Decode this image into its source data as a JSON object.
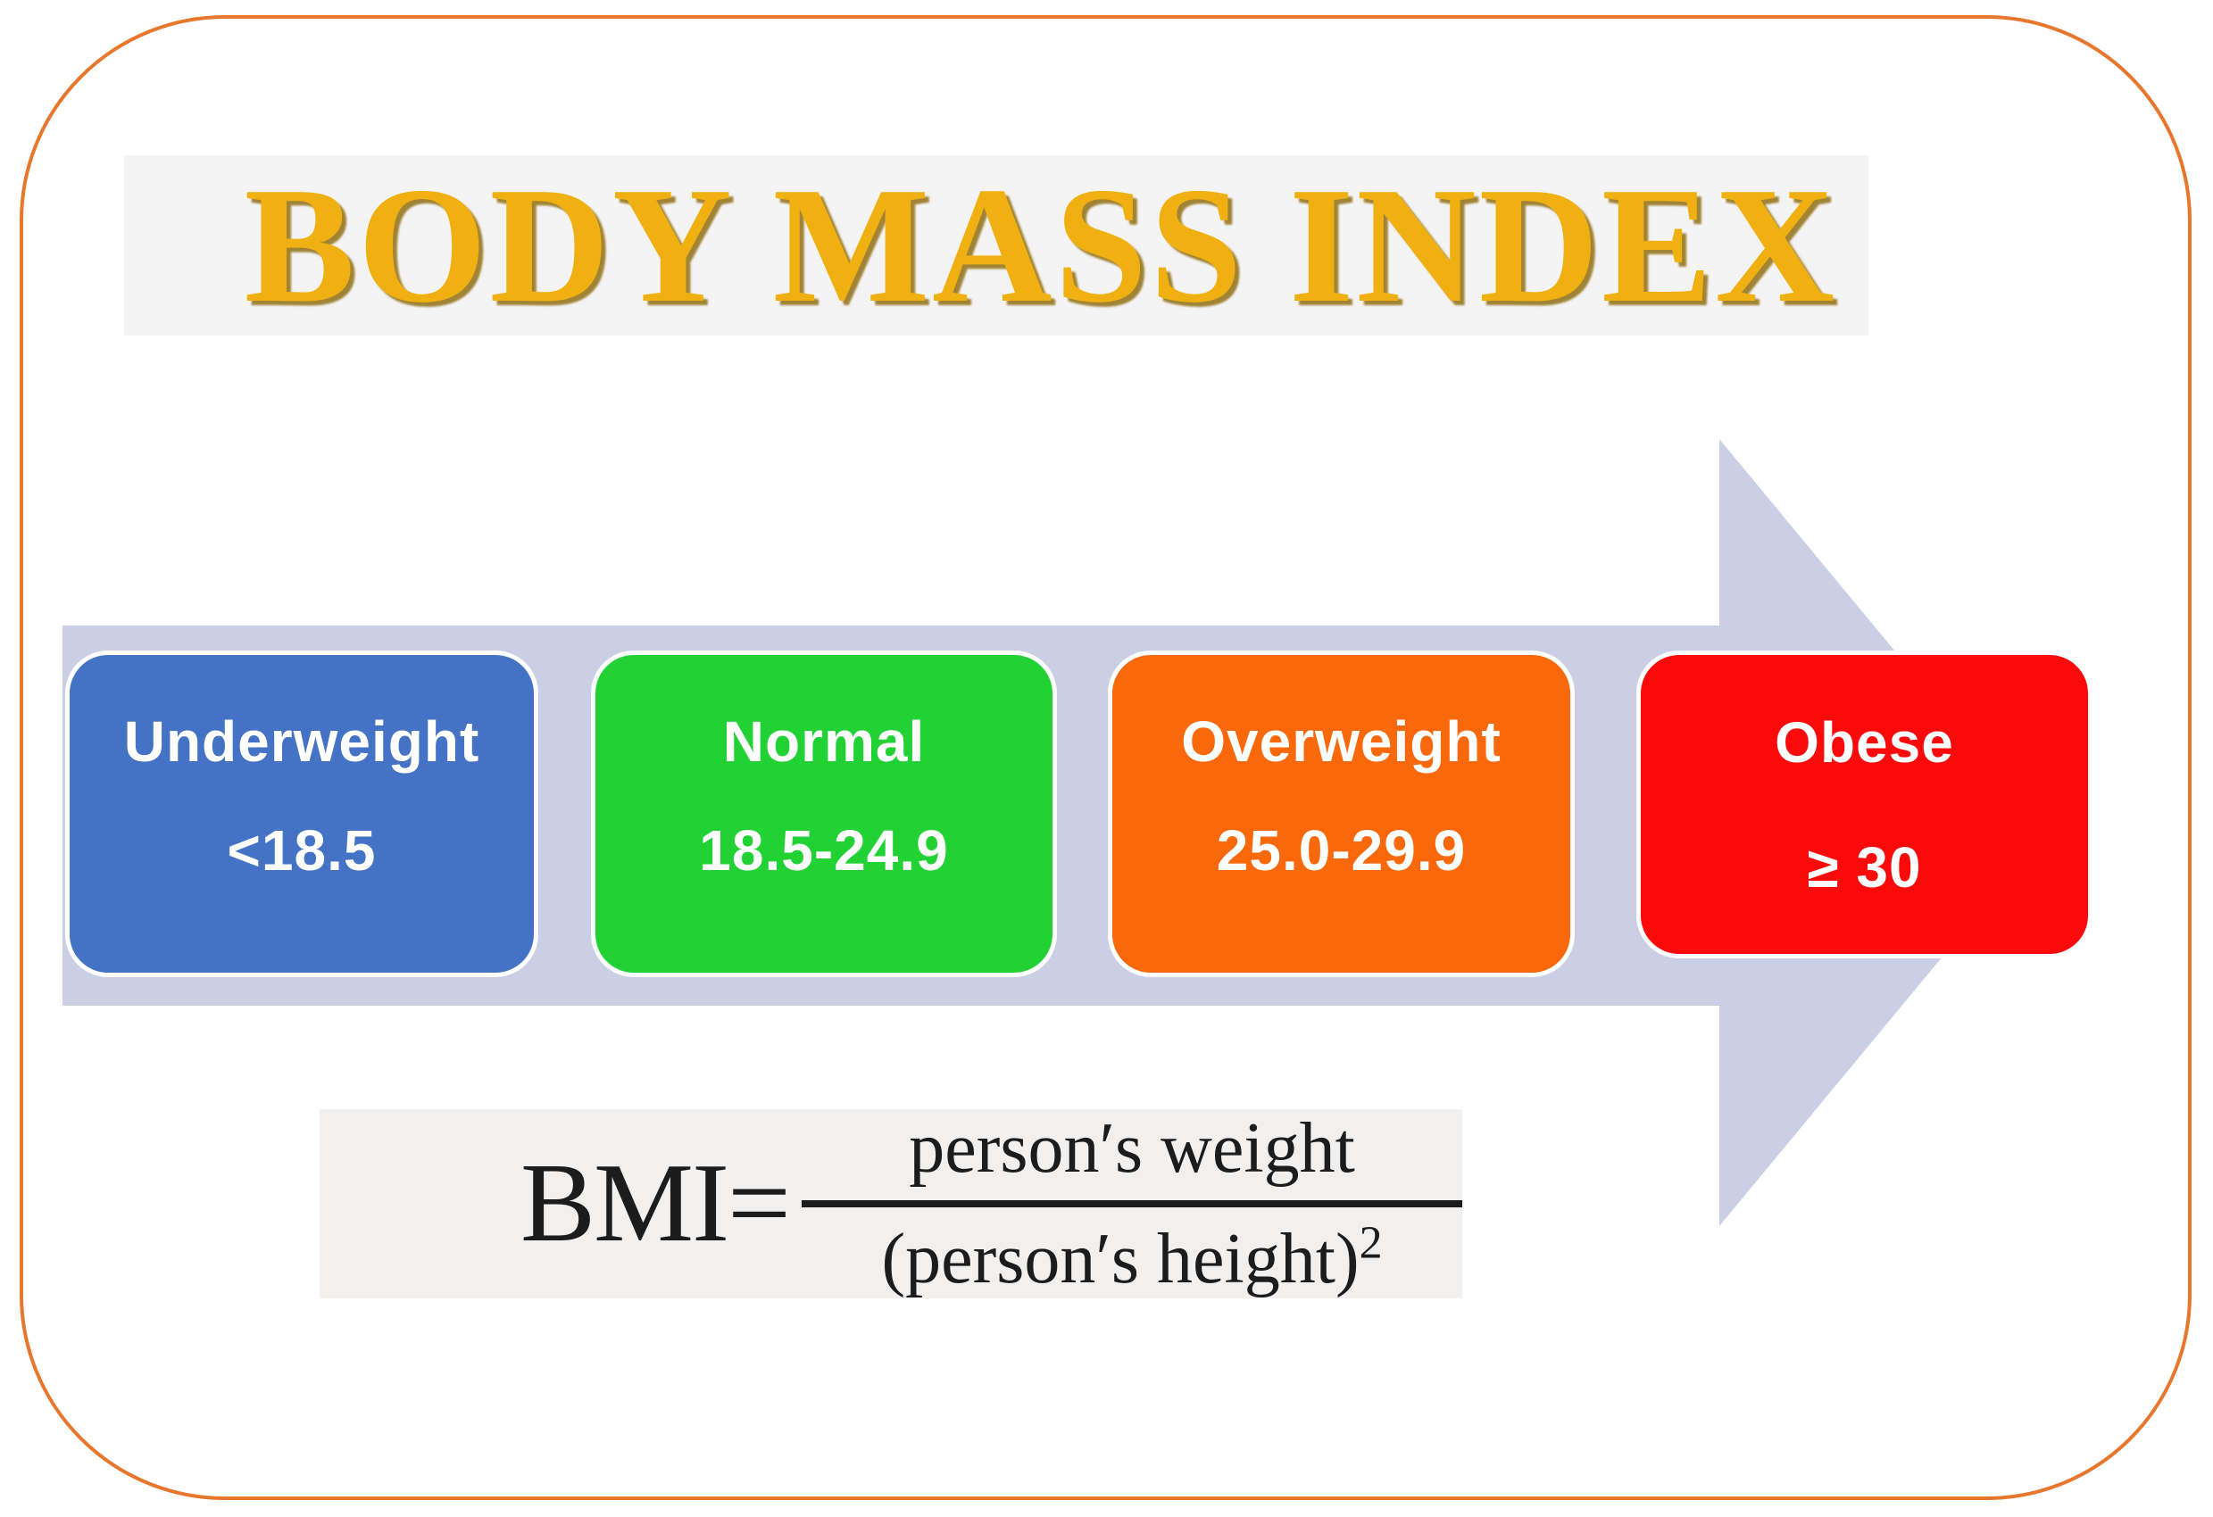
{
  "figure": {
    "background": "#ffffff",
    "frame_border_color": "#e8772e"
  },
  "title": {
    "text": "BODY MASS INDEX",
    "color": "#f1b011",
    "shadow_color": "#8b6604",
    "background": "#f5f4f4"
  },
  "arrow": {
    "color": "#cacfe6",
    "direction": "right"
  },
  "categories": [
    {
      "label": "Underweight",
      "range": "<18.5",
      "color": "#4472c4"
    },
    {
      "label": "Normal",
      "range": "18.5-24.9",
      "color": "#22d235"
    },
    {
      "label": "Overweight",
      "range": "25.0-29.9",
      "color": "#f9690b"
    },
    {
      "label": "Obese",
      "range": "≥ 30",
      "color": "#fa0a0a"
    }
  ],
  "formula": {
    "lhs": "BMI=",
    "numerator": "person′s weight",
    "denominator": "(person′s height)",
    "exponent": "2",
    "background": "#f1f0ef",
    "text_color": "#1c1c1c"
  }
}
